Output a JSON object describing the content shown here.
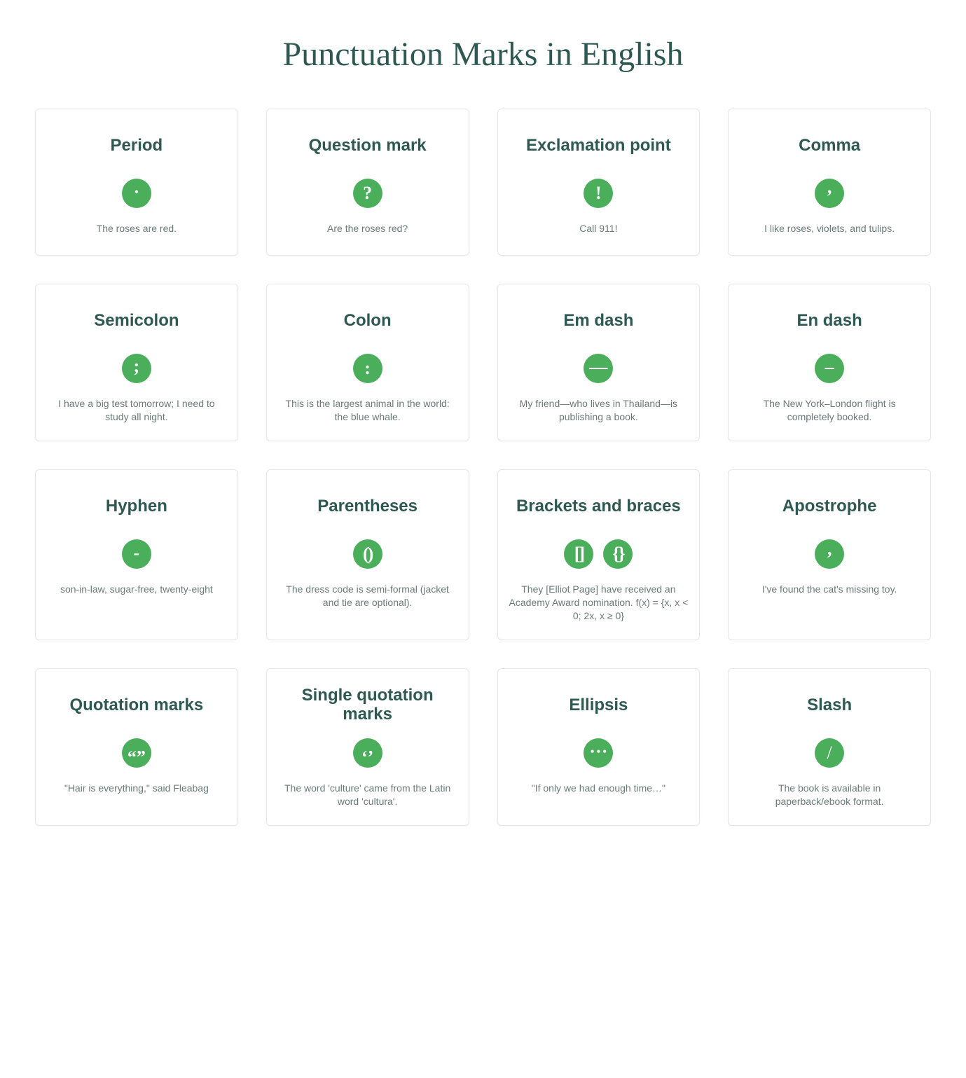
{
  "title": "Punctuation Marks in English",
  "style": {
    "title_color": "#2e5952",
    "title_fontsize": 48,
    "card_title_color": "#2e5952",
    "card_title_fontsize": 24,
    "example_color": "#6a7a78",
    "example_fontsize": 14,
    "icon_bg": "#4aae5b",
    "icon_fg": "#ffffff",
    "icon_size": 42,
    "icon_glyph_fontsize": 26,
    "card_border": "#e6e6e6",
    "page_bg": "#ffffff",
    "grid_cols": 4,
    "grid_gap": 40
  },
  "cards": [
    {
      "title": "Period",
      "icons": [
        "."
      ],
      "example": "The roses are red."
    },
    {
      "title": "Question mark",
      "icons": [
        "?"
      ],
      "example": "Are the roses red?"
    },
    {
      "title": "Exclamation point",
      "icons": [
        "!"
      ],
      "example": "Call 911!"
    },
    {
      "title": "Comma",
      "icons": [
        ","
      ],
      "example": "I like roses, violets, and tulips."
    },
    {
      "title": "Semicolon",
      "icons": [
        ";"
      ],
      "example": "I have a big test tomorrow; I need to study all night."
    },
    {
      "title": "Colon",
      "icons": [
        ":"
      ],
      "example": "This is the largest animal in the world: the blue whale."
    },
    {
      "title": "Em dash",
      "icons": [
        "—"
      ],
      "example": "My friend—who lives in Thailand—is publishing a book."
    },
    {
      "title": "En dash",
      "icons": [
        "–"
      ],
      "example": "The New York–London flight is completely booked."
    },
    {
      "title": "Hyphen",
      "icons": [
        "-"
      ],
      "example": "son-in-law, sugar-free, twenty-eight"
    },
    {
      "title": "Parentheses",
      "icons": [
        "()"
      ],
      "example": "The dress code is semi-formal (jacket and tie are optional)."
    },
    {
      "title": "Brackets and braces",
      "icons": [
        "[]",
        "{}"
      ],
      "example": "They [Elliot Page] have received an Academy Award nomination. f(x) = {x, x < 0; 2x, x ≥ 0}"
    },
    {
      "title": "Apostrophe",
      "icons": [
        "’"
      ],
      "example": "I've found the cat's missing toy."
    },
    {
      "title": "Quotation marks",
      "icons": [
        "“”"
      ],
      "example": "\"Hair is everything,\" said Fleabag"
    },
    {
      "title": "Single quotation marks",
      "icons": [
        "‘’"
      ],
      "example": "The word 'culture' came from the Latin word 'cultura'."
    },
    {
      "title": "Ellipsis",
      "icons": [
        "…"
      ],
      "example": "\"If only we had enough time…\""
    },
    {
      "title": "Slash",
      "icons": [
        "/"
      ],
      "example": "The book is available in paperback/ebook format."
    }
  ]
}
